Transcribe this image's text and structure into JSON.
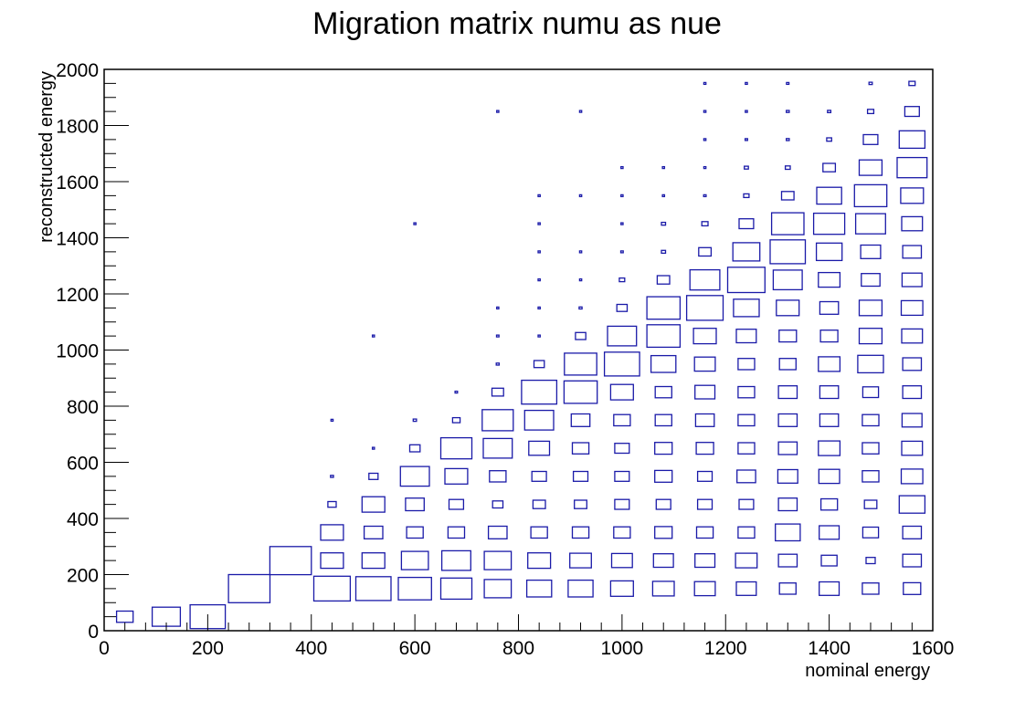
{
  "chart_data": {
    "type": "heatmap",
    "title": "Migration matrix numu as nue",
    "xlabel": "nominal energy",
    "ylabel": "reconstructed energy",
    "xlim": [
      0,
      1600
    ],
    "ylim": [
      0,
      2000
    ],
    "x_ticks": [
      0,
      200,
      400,
      600,
      800,
      1000,
      1200,
      1400,
      1600
    ],
    "y_ticks": [
      0,
      200,
      400,
      600,
      800,
      1000,
      1200,
      1400,
      1600,
      1800,
      2000
    ],
    "grid": false,
    "legend": "none",
    "box_color": "#1a1aa8",
    "y_bin_centers": [
      50,
      150,
      250,
      350,
      450,
      550,
      650,
      750,
      850,
      950,
      1050,
      1150,
      1250,
      1350,
      1450,
      1550,
      1650,
      1750,
      1850,
      1950
    ],
    "columns": [
      {
        "x": 40,
        "cells": [
          [
            50,
            0.4
          ]
        ]
      },
      {
        "x": 120,
        "cells": [
          [
            50,
            0.68
          ]
        ]
      },
      {
        "x": 200,
        "cells": [
          [
            50,
            0.85
          ]
        ]
      },
      {
        "x": 280,
        "cells": [
          [
            150,
            1.0
          ]
        ]
      },
      {
        "x": 360,
        "cells": [
          [
            250,
            1.0
          ]
        ]
      },
      {
        "x": 440,
        "cells": [
          [
            150,
            0.88
          ],
          [
            250,
            0.55
          ],
          [
            350,
            0.55
          ],
          [
            450,
            0.2
          ],
          [
            550,
            0.07
          ],
          [
            750,
            0.05
          ]
        ]
      },
      {
        "x": 520,
        "cells": [
          [
            150,
            0.85
          ],
          [
            250,
            0.55
          ],
          [
            350,
            0.45
          ],
          [
            450,
            0.55
          ],
          [
            550,
            0.22
          ],
          [
            650,
            0.05
          ],
          [
            1050,
            0.05
          ]
        ]
      },
      {
        "x": 600,
        "cells": [
          [
            150,
            0.8
          ],
          [
            250,
            0.65
          ],
          [
            350,
            0.4
          ],
          [
            450,
            0.45
          ],
          [
            550,
            0.7
          ],
          [
            650,
            0.25
          ],
          [
            750,
            0.08
          ],
          [
            1450,
            0.05
          ]
        ]
      },
      {
        "x": 680,
        "cells": [
          [
            150,
            0.75
          ],
          [
            250,
            0.7
          ],
          [
            350,
            0.4
          ],
          [
            450,
            0.35
          ],
          [
            550,
            0.55
          ],
          [
            650,
            0.75
          ],
          [
            750,
            0.18
          ],
          [
            850,
            0.06
          ]
        ]
      },
      {
        "x": 760,
        "cells": [
          [
            150,
            0.65
          ],
          [
            250,
            0.65
          ],
          [
            350,
            0.45
          ],
          [
            450,
            0.25
          ],
          [
            550,
            0.4
          ],
          [
            650,
            0.7
          ],
          [
            750,
            0.75
          ],
          [
            850,
            0.28
          ],
          [
            950,
            0.07
          ],
          [
            1050,
            0.06
          ],
          [
            1150,
            0.05
          ],
          [
            1850,
            0.05
          ]
        ]
      },
      {
        "x": 840,
        "cells": [
          [
            150,
            0.6
          ],
          [
            250,
            0.55
          ],
          [
            350,
            0.4
          ],
          [
            450,
            0.3
          ],
          [
            550,
            0.35
          ],
          [
            650,
            0.5
          ],
          [
            750,
            0.7
          ],
          [
            850,
            0.85
          ],
          [
            950,
            0.25
          ],
          [
            1050,
            0.05
          ],
          [
            1150,
            0.05
          ],
          [
            1250,
            0.05
          ],
          [
            1350,
            0.05
          ],
          [
            1450,
            0.05
          ],
          [
            1550,
            0.05
          ]
        ]
      },
      {
        "x": 920,
        "cells": [
          [
            150,
            0.6
          ],
          [
            250,
            0.52
          ],
          [
            350,
            0.4
          ],
          [
            450,
            0.3
          ],
          [
            550,
            0.35
          ],
          [
            650,
            0.4
          ],
          [
            750,
            0.45
          ],
          [
            850,
            0.8
          ],
          [
            950,
            0.78
          ],
          [
            1050,
            0.25
          ],
          [
            1150,
            0.07
          ],
          [
            1250,
            0.05
          ],
          [
            1350,
            0.05
          ],
          [
            1550,
            0.05
          ],
          [
            1850,
            0.05
          ]
        ]
      },
      {
        "x": 1000,
        "cells": [
          [
            150,
            0.55
          ],
          [
            250,
            0.5
          ],
          [
            350,
            0.4
          ],
          [
            450,
            0.35
          ],
          [
            550,
            0.35
          ],
          [
            650,
            0.35
          ],
          [
            750,
            0.4
          ],
          [
            850,
            0.55
          ],
          [
            950,
            0.85
          ],
          [
            1050,
            0.7
          ],
          [
            1150,
            0.25
          ],
          [
            1250,
            0.13
          ],
          [
            1350,
            0.06
          ],
          [
            1450,
            0.05
          ],
          [
            1550,
            0.05
          ],
          [
            1650,
            0.05
          ]
        ]
      },
      {
        "x": 1080,
        "cells": [
          [
            150,
            0.52
          ],
          [
            250,
            0.48
          ],
          [
            350,
            0.42
          ],
          [
            450,
            0.35
          ],
          [
            550,
            0.42
          ],
          [
            650,
            0.42
          ],
          [
            750,
            0.4
          ],
          [
            850,
            0.4
          ],
          [
            950,
            0.6
          ],
          [
            1050,
            0.8
          ],
          [
            1150,
            0.8
          ],
          [
            1250,
            0.3
          ],
          [
            1350,
            0.1
          ],
          [
            1450,
            0.1
          ],
          [
            1550,
            0.05
          ],
          [
            1650,
            0.05
          ]
        ]
      },
      {
        "x": 1160,
        "cells": [
          [
            150,
            0.5
          ],
          [
            250,
            0.48
          ],
          [
            350,
            0.4
          ],
          [
            450,
            0.35
          ],
          [
            550,
            0.35
          ],
          [
            650,
            0.42
          ],
          [
            750,
            0.45
          ],
          [
            850,
            0.48
          ],
          [
            950,
            0.5
          ],
          [
            1050,
            0.55
          ],
          [
            1150,
            0.88
          ],
          [
            1250,
            0.72
          ],
          [
            1350,
            0.3
          ],
          [
            1450,
            0.15
          ],
          [
            1550,
            0.06
          ],
          [
            1650,
            0.05
          ],
          [
            1750,
            0.05
          ],
          [
            1850,
            0.05
          ],
          [
            1950,
            0.05
          ]
        ]
      },
      {
        "x": 1240,
        "cells": [
          [
            150,
            0.48
          ],
          [
            250,
            0.52
          ],
          [
            350,
            0.4
          ],
          [
            450,
            0.35
          ],
          [
            550,
            0.45
          ],
          [
            650,
            0.4
          ],
          [
            750,
            0.4
          ],
          [
            850,
            0.4
          ],
          [
            950,
            0.4
          ],
          [
            1050,
            0.48
          ],
          [
            1150,
            0.62
          ],
          [
            1250,
            0.9
          ],
          [
            1350,
            0.65
          ],
          [
            1450,
            0.35
          ],
          [
            1550,
            0.13
          ],
          [
            1650,
            0.1
          ],
          [
            1750,
            0.06
          ],
          [
            1850,
            0.05
          ],
          [
            1950,
            0.05
          ]
        ]
      },
      {
        "x": 1320,
        "cells": [
          [
            150,
            0.4
          ],
          [
            250,
            0.45
          ],
          [
            350,
            0.6
          ],
          [
            450,
            0.45
          ],
          [
            550,
            0.48
          ],
          [
            650,
            0.45
          ],
          [
            750,
            0.45
          ],
          [
            850,
            0.45
          ],
          [
            950,
            0.4
          ],
          [
            1050,
            0.42
          ],
          [
            1150,
            0.55
          ],
          [
            1250,
            0.7
          ],
          [
            1350,
            0.85
          ],
          [
            1450,
            0.78
          ],
          [
            1550,
            0.3
          ],
          [
            1650,
            0.12
          ],
          [
            1750,
            0.07
          ],
          [
            1850,
            0.07
          ],
          [
            1950,
            0.06
          ]
        ]
      },
      {
        "x": 1400,
        "cells": [
          [
            150,
            0.48
          ],
          [
            250,
            0.38
          ],
          [
            350,
            0.48
          ],
          [
            450,
            0.4
          ],
          [
            550,
            0.5
          ],
          [
            650,
            0.52
          ],
          [
            750,
            0.45
          ],
          [
            850,
            0.45
          ],
          [
            950,
            0.52
          ],
          [
            1050,
            0.42
          ],
          [
            1150,
            0.45
          ],
          [
            1250,
            0.52
          ],
          [
            1350,
            0.62
          ],
          [
            1450,
            0.75
          ],
          [
            1550,
            0.6
          ],
          [
            1650,
            0.3
          ],
          [
            1750,
            0.12
          ],
          [
            1850,
            0.08
          ]
        ]
      },
      {
        "x": 1480,
        "cells": [
          [
            150,
            0.4
          ],
          [
            250,
            0.22
          ],
          [
            350,
            0.38
          ],
          [
            450,
            0.3
          ],
          [
            550,
            0.4
          ],
          [
            650,
            0.4
          ],
          [
            750,
            0.4
          ],
          [
            850,
            0.38
          ],
          [
            950,
            0.62
          ],
          [
            1050,
            0.55
          ],
          [
            1150,
            0.55
          ],
          [
            1250,
            0.45
          ],
          [
            1350,
            0.48
          ],
          [
            1450,
            0.72
          ],
          [
            1550,
            0.78
          ],
          [
            1650,
            0.55
          ],
          [
            1750,
            0.35
          ],
          [
            1850,
            0.15
          ],
          [
            1950,
            0.08
          ]
        ]
      },
      {
        "x": 1560,
        "cells": [
          [
            150,
            0.42
          ],
          [
            250,
            0.45
          ],
          [
            350,
            0.45
          ],
          [
            450,
            0.62
          ],
          [
            550,
            0.52
          ],
          [
            650,
            0.5
          ],
          [
            750,
            0.48
          ],
          [
            850,
            0.45
          ],
          [
            950,
            0.45
          ],
          [
            1050,
            0.5
          ],
          [
            1150,
            0.52
          ],
          [
            1250,
            0.48
          ],
          [
            1350,
            0.45
          ],
          [
            1450,
            0.5
          ],
          [
            1550,
            0.55
          ],
          [
            1650,
            0.72
          ],
          [
            1750,
            0.62
          ],
          [
            1850,
            0.35
          ],
          [
            1950,
            0.15
          ]
        ]
      }
    ]
  }
}
